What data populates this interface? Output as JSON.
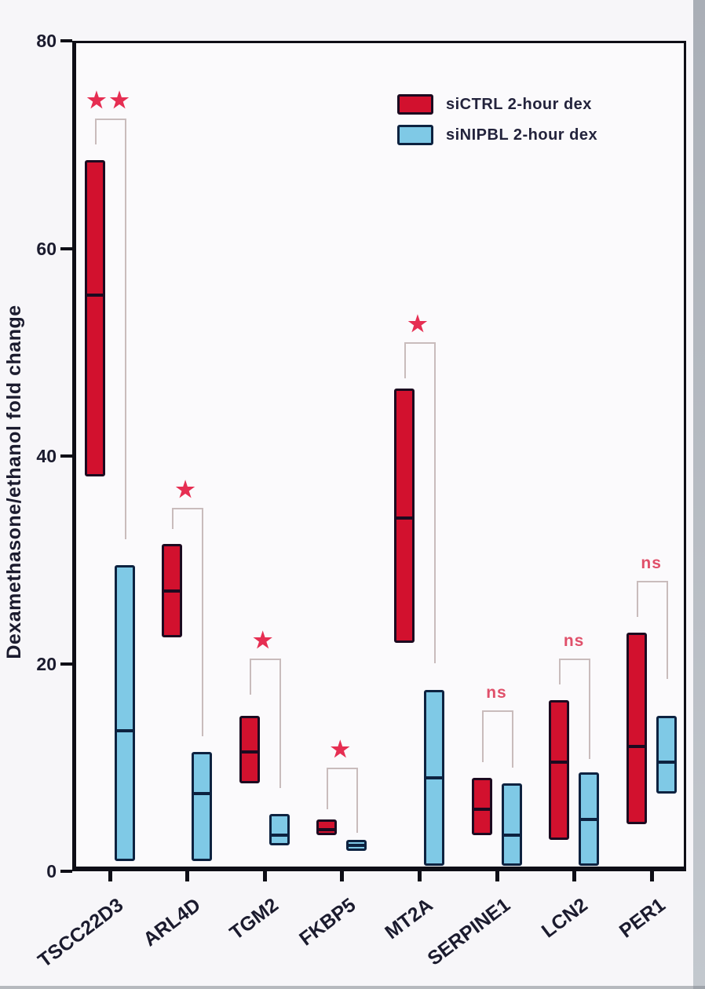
{
  "chart_data": {
    "type": "bar",
    "subtype": "floating-box-plot",
    "title": "",
    "ylabel": "Dexamethasone/ethanol fold change",
    "xlabel": "",
    "ylim": [
      0,
      80
    ],
    "yticks": [
      0,
      20,
      40,
      60,
      80
    ],
    "grid": false,
    "categories": [
      "TSCC22D3",
      "ARL4D",
      "TGM2",
      "FKBP5",
      "MT2A",
      "SERPINE1",
      "LCN2",
      "PER1"
    ],
    "boxes_format": "[min, median, max] dexamethasone/ethanol fold change",
    "series": [
      {
        "name": "siCTRL 2-hour dex",
        "fill": "#d2112e",
        "border": "#1c0a20",
        "boxes": [
          [
            38,
            55.5,
            68.5
          ],
          [
            22.5,
            27,
            31.5
          ],
          [
            8.5,
            11.5,
            15
          ],
          [
            3.5,
            4,
            5
          ],
          [
            22,
            34,
            46.5
          ],
          [
            3.5,
            6,
            9
          ],
          [
            3,
            10.5,
            16.5
          ],
          [
            4.5,
            12,
            23
          ]
        ]
      },
      {
        "name": "siNIPBL 2-hour dex",
        "fill": "#7fc9e6",
        "border": "#0d2240",
        "boxes": [
          [
            1,
            13.5,
            29.5
          ],
          [
            1,
            7.5,
            11.5
          ],
          [
            2.5,
            3.5,
            5.5
          ],
          [
            2,
            2.5,
            3
          ],
          [
            0.5,
            9,
            17.5
          ],
          [
            0.5,
            3.5,
            8.5
          ],
          [
            0.5,
            5,
            9.5
          ],
          [
            7.5,
            10.5,
            15
          ]
        ]
      }
    ],
    "significance": [
      {
        "category": "TSCC22D3",
        "label": "**",
        "top": 72.5,
        "left_end": 70,
        "right_end": 32
      },
      {
        "category": "ARL4D",
        "label": "*",
        "top": 35,
        "left_end": 33,
        "right_end": 13
      },
      {
        "category": "TGM2",
        "label": "*",
        "top": 20.5,
        "left_end": 17,
        "right_end": 8
      },
      {
        "category": "FKBP5",
        "label": "*",
        "top": 10,
        "left_end": 6,
        "right_end": 3.7
      },
      {
        "category": "MT2A",
        "label": "*",
        "top": 51,
        "left_end": 47.5,
        "right_end": 20
      },
      {
        "category": "SERPINE1",
        "label": "ns",
        "top": 15.5,
        "left_end": 10.5,
        "right_end": 10
      },
      {
        "category": "LCN2",
        "label": "ns",
        "top": 20.5,
        "left_end": 18,
        "right_end": 10.8
      },
      {
        "category": "PER1",
        "label": "ns",
        "top": 28,
        "left_end": 24.5,
        "right_end": 18.5
      }
    ],
    "legend": {
      "position": "top-right-inside",
      "items": [
        {
          "label": "siCTRL 2-hour dex"
        },
        {
          "label": "siNIPBL 2-hour dex"
        }
      ]
    },
    "colors": {
      "axis": "#0e0e16",
      "text": "#1b1b2e",
      "bracket": "#c9bcbc",
      "star": "#e62e52",
      "ns": "#e0506a",
      "background": "#f7f6f9"
    }
  }
}
